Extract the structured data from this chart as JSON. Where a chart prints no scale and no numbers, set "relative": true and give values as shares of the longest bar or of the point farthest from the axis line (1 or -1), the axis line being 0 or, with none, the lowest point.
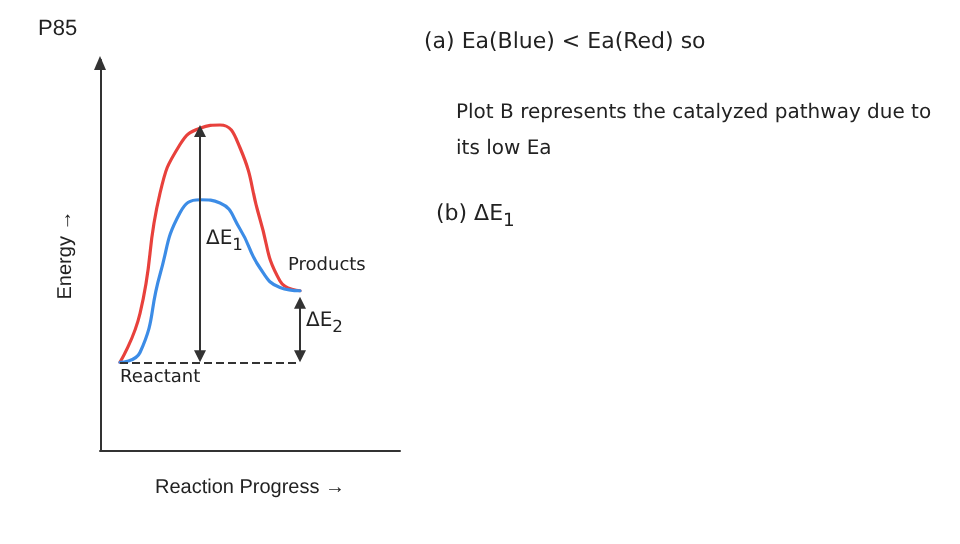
{
  "chart_data": {
    "type": "line",
    "title": "P85",
    "xlabel": "Reaction Progress →",
    "ylabel": "Energy →",
    "relative": true,
    "marker": "none",
    "line_style": "solid",
    "categories": [
      null,
      null,
      null,
      null,
      null,
      null,
      null,
      null,
      null,
      null,
      null,
      null,
      null,
      null,
      null,
      null
    ],
    "series": [
      {
        "color": "#e8413c",
        "values": [
          null,
          0.27,
          0.42,
          0.79,
          0.94,
          0.99,
          1.0,
          0.93,
          0.71,
          0.52,
          0.49,
          null,
          null,
          null,
          null,
          null
        ]
      },
      {
        "color": "#3c8ce6",
        "values": [
          null,
          0.27,
          0.3,
          0.54,
          0.73,
          0.77,
          0.76,
          0.68,
          0.56,
          0.5,
          0.49,
          null,
          null,
          null,
          null,
          null
        ]
      }
    ],
    "ref_lines": [
      {
        "axis": "y",
        "value": 0.27,
        "color": "#333333",
        "line_style": "dashed"
      }
    ],
    "annotations": [
      "Reactant",
      "Products",
      "ΔE$_{1}$",
      "ΔE$_{2}$",
      "(a) Ea(Blue) < Ea(Red) so",
      "Plot B represents the catalyzed pathway due to its low Ea",
      "(b) ΔE$_{1}$"
    ]
  }
}
